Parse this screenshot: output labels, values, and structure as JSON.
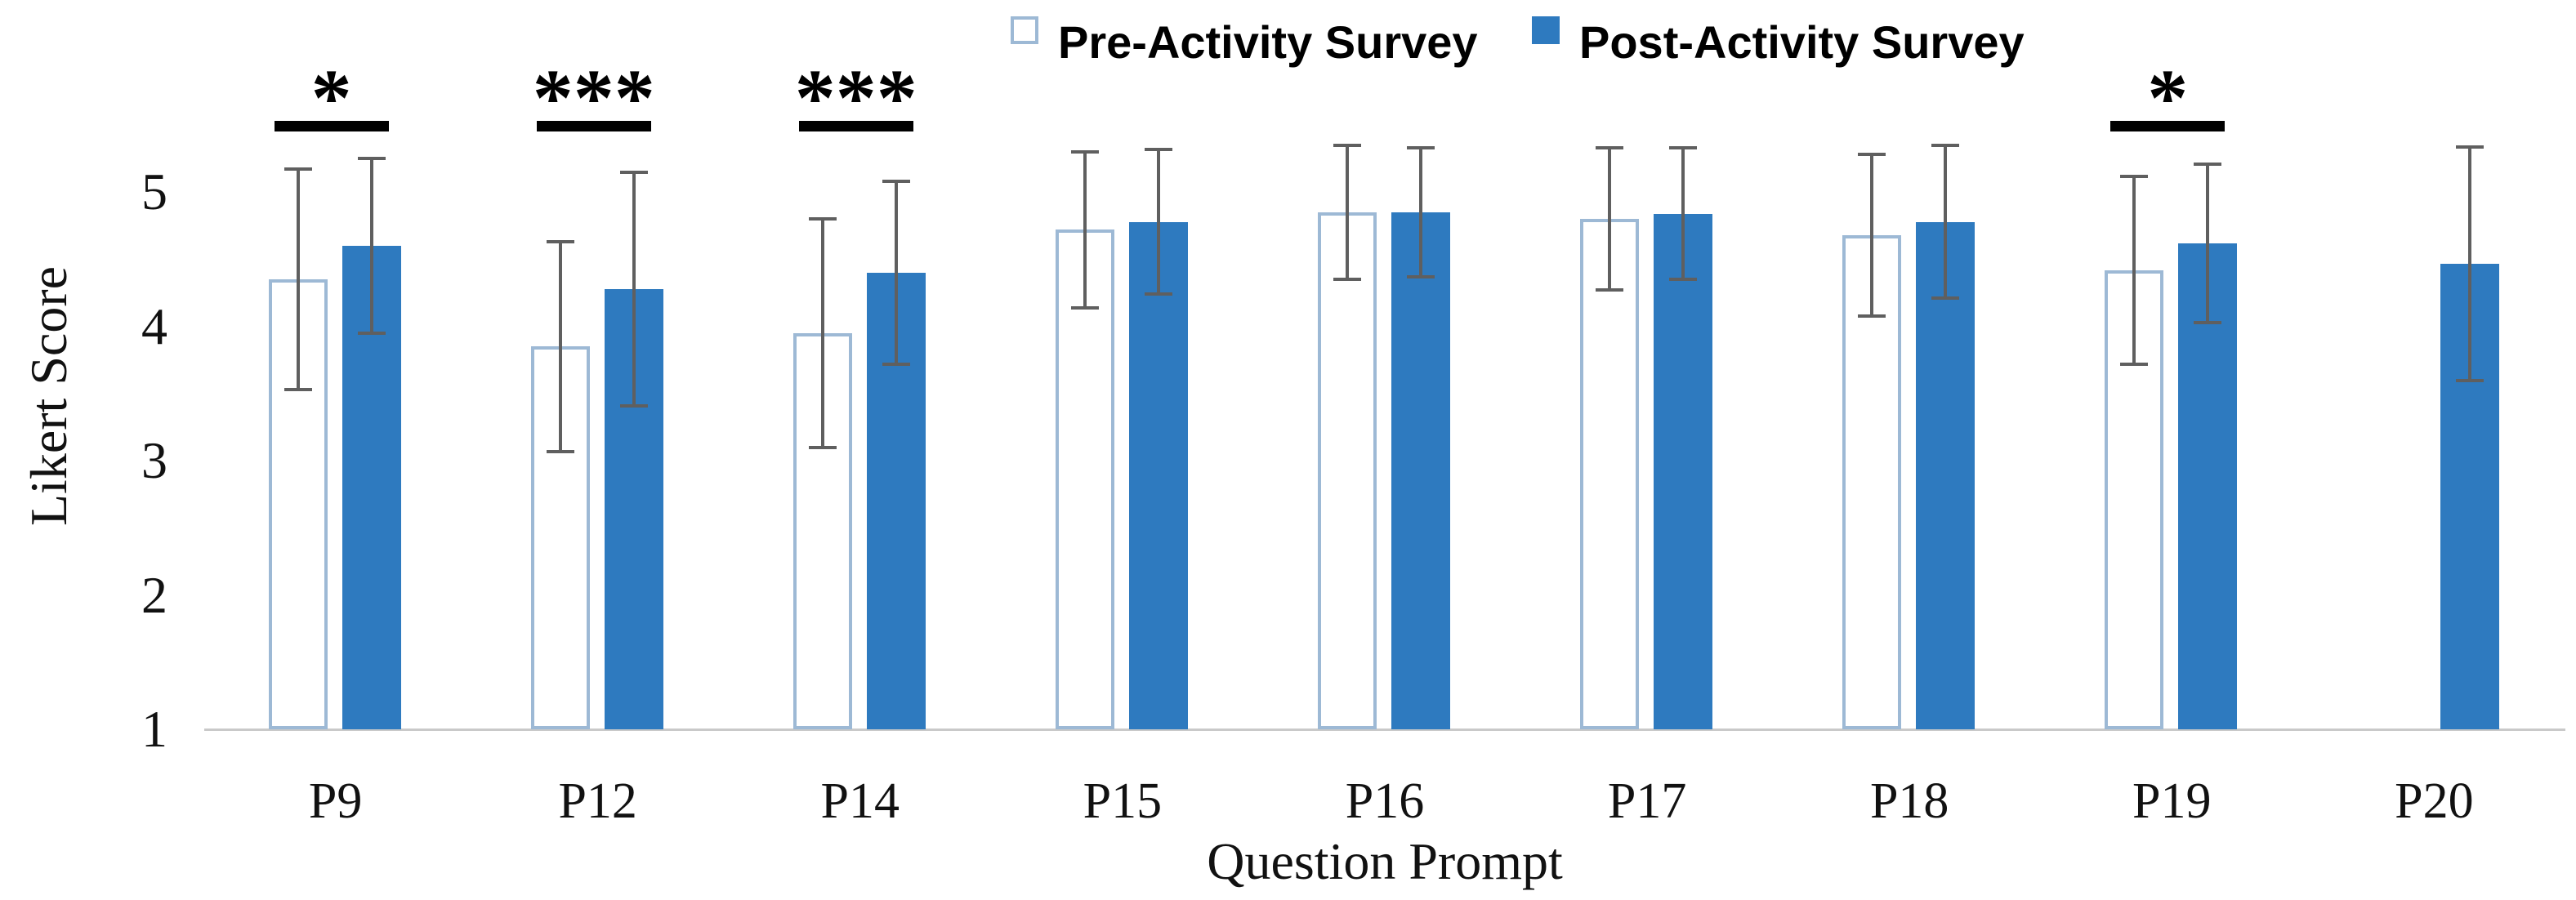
{
  "chart_data": {
    "type": "bar",
    "title": "",
    "xlabel": "Question Prompt",
    "ylabel": "Likert Score",
    "ylim": [
      1,
      5.5
    ],
    "yticks": [
      1,
      2,
      3,
      4,
      5
    ],
    "grid": false,
    "legend_position": "top",
    "categories": [
      "P9",
      "P12",
      "P14",
      "P15",
      "P16",
      "P17",
      "P18",
      "P19",
      "P20"
    ],
    "series": [
      {
        "name": "Pre-Activity Survey",
        "style": "outlined",
        "values": [
          4.35,
          3.85,
          3.95,
          4.72,
          4.85,
          4.8,
          4.68,
          4.42,
          null
        ],
        "errors": [
          0.82,
          0.78,
          0.85,
          0.58,
          0.5,
          0.53,
          0.6,
          0.7,
          null
        ]
      },
      {
        "name": "Post-Activity Survey",
        "style": "filled",
        "values": [
          4.6,
          4.28,
          4.4,
          4.78,
          4.85,
          4.84,
          4.78,
          4.62,
          4.47
        ],
        "errors": [
          0.65,
          0.87,
          0.68,
          0.54,
          0.48,
          0.49,
          0.57,
          0.59,
          0.87
        ]
      }
    ],
    "significance": [
      {
        "category": "P9",
        "label": "*"
      },
      {
        "category": "P12",
        "label": "***"
      },
      {
        "category": "P14",
        "label": "***"
      },
      {
        "category": "P19",
        "label": "*"
      }
    ],
    "colors": {
      "post_fill": "#2E7ABF",
      "post_edge": "#2E7ABF",
      "pre_border": "#9DB9D5",
      "error_bar": "#5F5F5F",
      "baseline": "#C9C9C9"
    }
  }
}
